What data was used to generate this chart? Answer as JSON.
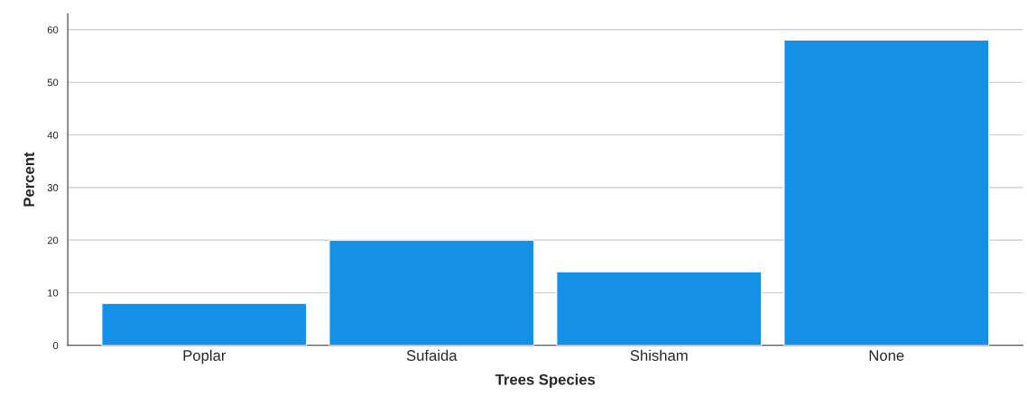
{
  "chart_data": {
    "type": "bar",
    "xlabel": "Trees Species",
    "ylabel": "Percent",
    "categories": [
      "Poplar",
      "Sufaida",
      "Shisham",
      "None"
    ],
    "values": [
      8,
      20,
      14,
      58
    ],
    "color": "#1490e6",
    "ylim": [
      0,
      63
    ],
    "yticks": [
      0,
      10,
      20,
      30,
      40,
      50,
      60
    ],
    "grid": "y",
    "legend": false
  }
}
